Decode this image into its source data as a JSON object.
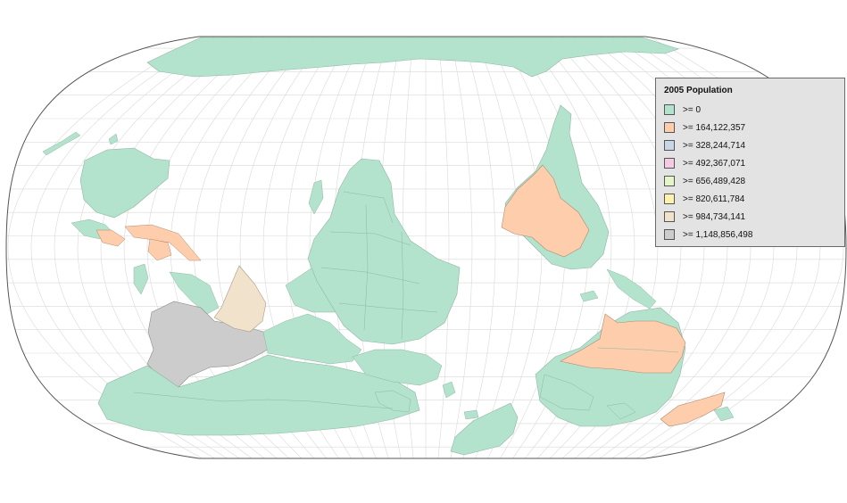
{
  "legend": {
    "title": "2005 Population",
    "items": [
      {
        "label": ">= 0",
        "color": "#b3e2cd"
      },
      {
        "label": ">= 164,122,357",
        "color": "#fdcdac"
      },
      {
        "label": ">= 328,244,714",
        "color": "#cbd5e8"
      },
      {
        "label": ">= 492,367,071",
        "color": "#f4cae4"
      },
      {
        "label": ">= 656,489,428",
        "color": "#e6f5c9"
      },
      {
        "label": ">= 820,611,784",
        "color": "#fff2ae"
      },
      {
        "label": ">= 984,734,141",
        "color": "#f1e2cc"
      },
      {
        "label": ">= 1,148,856,498",
        "color": "#cccccc"
      }
    ]
  },
  "map": {
    "projection": "robinson-south-up",
    "colors": {
      "ocean": "#ffffff",
      "land": "#b3e2cd",
      "graticule": "#d9d9d9",
      "outline": "#555555",
      "country_border": "#7f9f8f"
    }
  }
}
